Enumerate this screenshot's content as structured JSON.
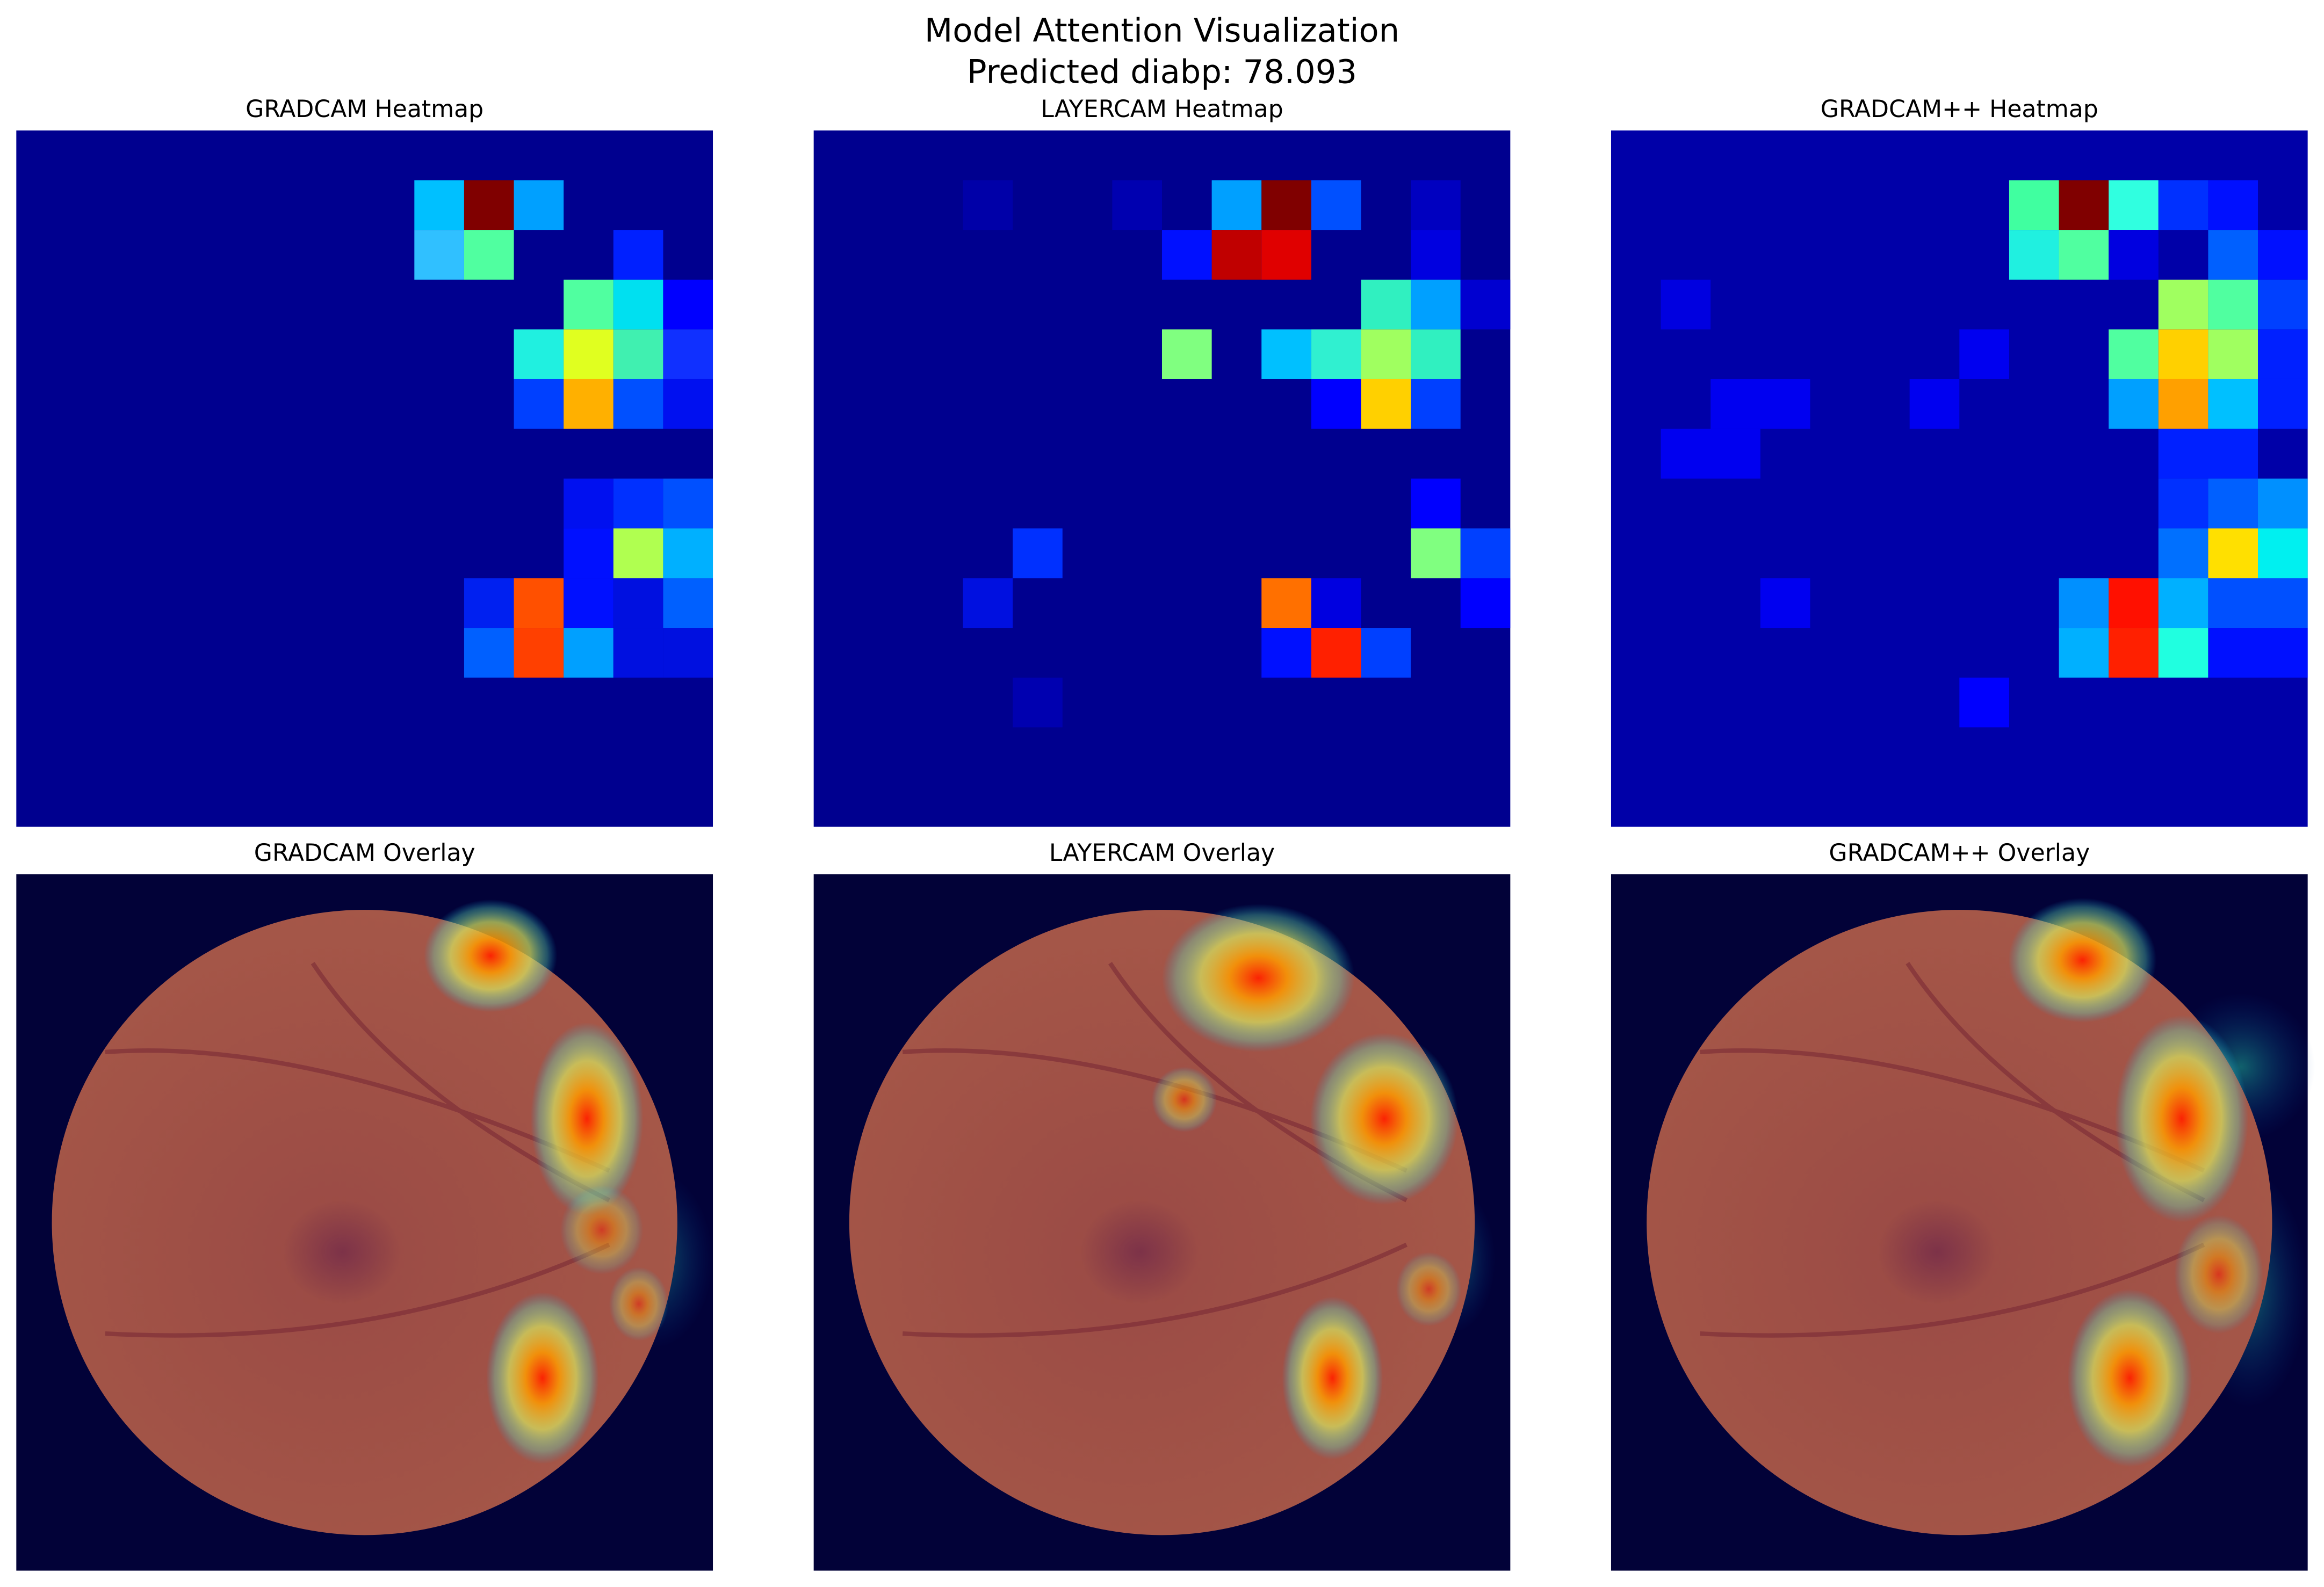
{
  "figure": {
    "title": [
      "Model Attention Visualization",
      "Predicted diabp: 78.093"
    ]
  },
  "panels": [
    {
      "title": "GRADCAM Heatmap"
    },
    {
      "title": "LAYERCAM Heatmap"
    },
    {
      "title": "GRADCAM++ Heatmap"
    },
    {
      "title": "GRADCAM Overlay"
    },
    {
      "title": "LAYERCAM Overlay"
    },
    {
      "title": "GRADCAM++ Overlay"
    }
  ]
}
